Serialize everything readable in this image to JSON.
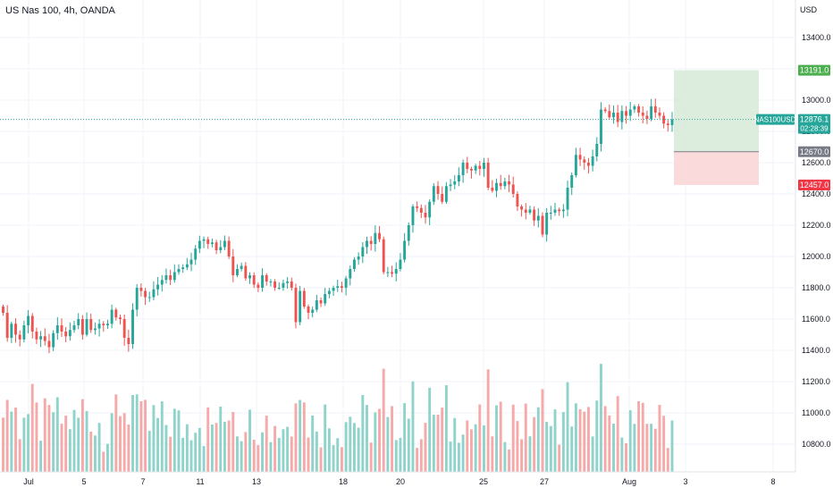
{
  "header": {
    "symbol_title": "US Nas 100, 4h, OANDA",
    "currency": "USD"
  },
  "price_labels": {
    "symbol": "NAS100USD",
    "current_price": "12876.1",
    "countdown": "02:28:39",
    "target_price": "13191.0",
    "entry_price": "12670.0",
    "stop_price": "12457.0"
  },
  "colors": {
    "up": "#26a69a",
    "down": "#ef5350",
    "volume_up": "#8fd3cb",
    "volume_down": "#f5a9a8",
    "profit_zone": "#d6ead7",
    "loss_zone": "#f9d6d6",
    "target_tag": "#4caf50",
    "entry_tag": "#787b86",
    "stop_tag": "#f23645",
    "grid": "#f0f3fa"
  },
  "chart_data": {
    "type": "candlestick",
    "title": "US Nas 100, 4h, OANDA",
    "timeframe": "4h",
    "y_axis_labels": [
      "13400.0",
      "13200.0",
      "13000.0",
      "12800.0",
      "12600.0",
      "12400.0",
      "12200.0",
      "12000.0",
      "11800.0",
      "11600.0",
      "11400.0",
      "11200.0",
      "11000.0",
      "10800.0"
    ],
    "y_axis_values": [
      13400,
      13200,
      13000,
      12800,
      12600,
      12400,
      12200,
      12000,
      11800,
      11600,
      11400,
      11200,
      11000,
      10800
    ],
    "ylim": [
      10700,
      13560
    ],
    "x_axis_labels": [
      "Jul",
      "5",
      "7",
      "11",
      "13",
      "18",
      "20",
      "25",
      "27",
      "Aug",
      "3",
      "8"
    ],
    "grid": true,
    "position": {
      "type": "long",
      "target": 13191.0,
      "entry": 12670.0,
      "stop": 12457.0
    },
    "last_price": 12876.1,
    "closes": [
      11640,
      11480,
      11570,
      11500,
      11470,
      11560,
      11620,
      11520,
      11470,
      11490,
      11460,
      11420,
      11510,
      11560,
      11520,
      11490,
      11530,
      11560,
      11600,
      11500,
      11600,
      11530,
      11540,
      11570,
      11560,
      11570,
      11660,
      11610,
      11600,
      11480,
      11440,
      11660,
      11800,
      11780,
      11740,
      11740,
      11790,
      11820,
      11850,
      11880,
      11850,
      11900,
      11920,
      11930,
      11950,
      11980,
      12050,
      12100,
      12110,
      12080,
      12090,
      12040,
      12060,
      12100,
      12000,
      11880,
      11920,
      11940,
      11860,
      11880,
      11820,
      11800,
      11880,
      11840,
      11840,
      11800,
      11800,
      11830,
      11840,
      11800,
      11580,
      11780,
      11680,
      11640,
      11660,
      11720,
      11700,
      11760,
      11780,
      11800,
      11810,
      11800,
      11860,
      11920,
      11980,
      12000,
      12060,
      12100,
      12080,
      12150,
      12110,
      11900,
      11900,
      11890,
      11920,
      11980,
      12100,
      12200,
      12320,
      12310,
      12280,
      12250,
      12350,
      12450,
      12400,
      12350,
      12450,
      12460,
      12480,
      12520,
      12600,
      12560,
      12550,
      12580,
      12560,
      12600,
      12440,
      12420,
      12470,
      12450,
      12480,
      12460,
      12400,
      12320,
      12300,
      12280,
      12300,
      12230,
      12260,
      12140,
      12280,
      12280,
      12300,
      12290,
      12300,
      12440,
      12520,
      12650,
      12620,
      12600,
      12580,
      12640,
      12720,
      12940,
      12930,
      12890,
      12920,
      12860,
      12930,
      12900,
      12940,
      12960,
      12920,
      12900,
      12880,
      12960,
      12920,
      12900,
      12850,
      12840,
      12876.1
    ],
    "volume_x_labels": [
      "Jul",
      "5",
      "7",
      "11",
      "13",
      "18",
      "20",
      "25",
      "27",
      "Aug",
      "3",
      "8"
    ]
  }
}
